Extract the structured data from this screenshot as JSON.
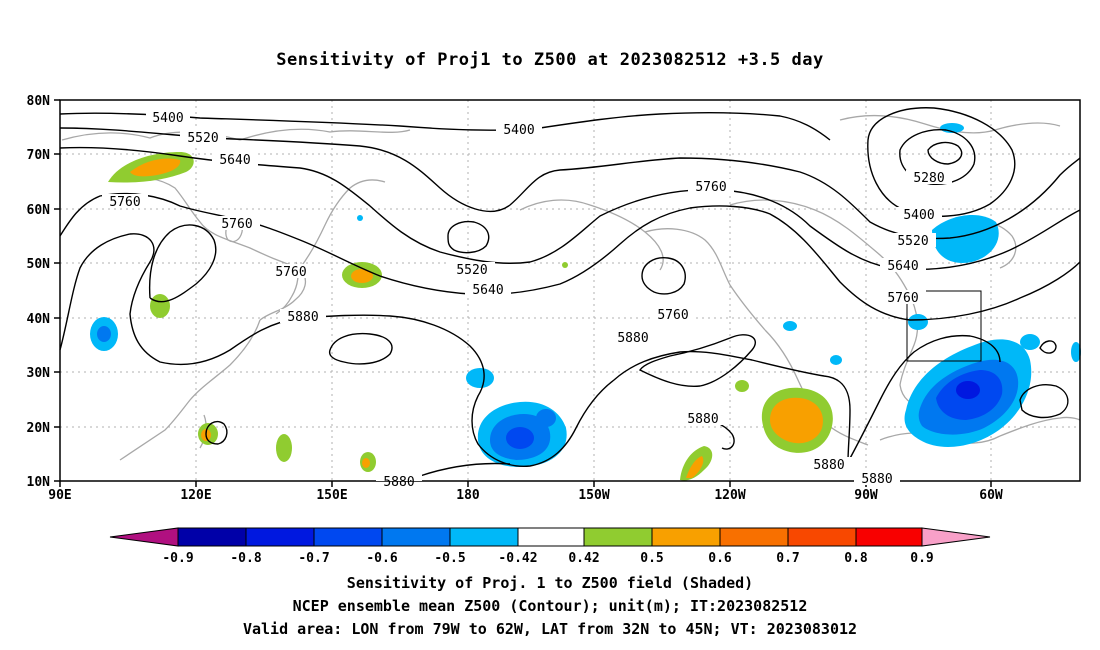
{
  "title": "Sensitivity of Proj1 to Z500 at 2023082512 +3.5 day",
  "lat_labels": [
    "80N",
    "70N",
    "60N",
    "50N",
    "40N",
    "30N",
    "20N",
    "10N"
  ],
  "lon_labels": [
    "90E",
    "120E",
    "150E",
    "180",
    "150W",
    "120W",
    "90W",
    "60W"
  ],
  "contour_labels": {
    "c5400_west": "5400",
    "c5400_mid": "5400",
    "c5400_east": "5400",
    "c5520_west": "5520",
    "c5520_mid": "5520",
    "c5520_east": "5520",
    "c5640_west": "5640",
    "c5640_mid": "5640",
    "c5640_east": "5640",
    "c5760_a": "5760",
    "c5760_b": "5760",
    "c5760_c": "5760",
    "c5760_d": "5760",
    "c5760_e": "5760",
    "c5760_f": "5760",
    "c5880_a": "5880",
    "c5880_b": "5880",
    "c5880_c": "5880",
    "c5880_d": "5880",
    "c5880_e": "5880",
    "c5880_f": "5880",
    "c5280": "5280"
  },
  "colorbar": {
    "labels": [
      "-0.9",
      "-0.8",
      "-0.7",
      "-0.6",
      "-0.5",
      "-0.42",
      "0.42",
      "0.5",
      "0.6",
      "0.7",
      "0.8",
      "0.9"
    ],
    "colors": [
      "#0000a8",
      "#0018e0",
      "#0048f0",
      "#0078f0",
      "#00b8f8",
      "#ffffff",
      "#90cc30",
      "#f8a000",
      "#f87000",
      "#f84800",
      "#f80000"
    ],
    "left_arrow_color": "#b01080",
    "right_arrow_color": "#f8a0c8"
  },
  "footer": {
    "line1": "Sensitivity of Proj. 1 to Z500 field (Shaded)",
    "line2": "NCEP ensemble mean Z500 (Contour); unit(m); IT:2023082512",
    "line3": "Valid area: LON from 79W to 62W, LAT from 32N to 45N; VT: 2023083012"
  },
  "valid_area": {
    "lon_min": -79,
    "lon_max": -62,
    "lat_min": 32,
    "lat_max": 45
  }
}
